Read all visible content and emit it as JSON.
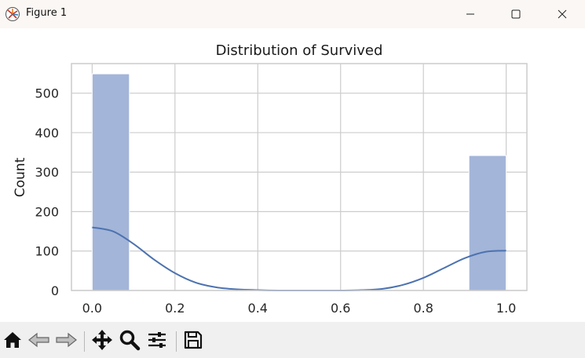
{
  "window": {
    "title": "Figure 1",
    "icons": {
      "app": "matplotlib-figure-icon",
      "minimize": "minimize-icon",
      "maximize": "maximize-icon",
      "close": "close-icon"
    }
  },
  "toolbar": {
    "buttons": [
      {
        "name": "home-button",
        "icon": "home-icon"
      },
      {
        "name": "back-button",
        "icon": "back-arrow-icon"
      },
      {
        "name": "forward-button",
        "icon": "forward-arrow-icon"
      },
      {
        "name": "pan-button",
        "icon": "move-arrows-icon"
      },
      {
        "name": "zoom-button",
        "icon": "magnifier-icon"
      },
      {
        "name": "configure-subplots-button",
        "icon": "sliders-icon"
      },
      {
        "name": "save-button",
        "icon": "floppy-disk-icon"
      }
    ]
  },
  "chart_data": {
    "type": "bar",
    "title": "Distribution of Survived",
    "xlabel": "",
    "ylabel": "Count",
    "xlim": [
      -0.05,
      1.05
    ],
    "ylim": [
      0,
      575
    ],
    "grid": true,
    "xticks": [
      0.0,
      0.2,
      0.4,
      0.6,
      0.8,
      1.0
    ],
    "xtick_labels": [
      "0.0",
      "0.2",
      "0.4",
      "0.6",
      "0.8",
      "1.0"
    ],
    "yticks": [
      0,
      100,
      200,
      300,
      400,
      500
    ],
    "ytick_labels": [
      "0",
      "100",
      "200",
      "300",
      "400",
      "500"
    ],
    "bins": [
      {
        "x0": 0.0,
        "x1": 0.09,
        "count": 549
      },
      {
        "x0": 0.91,
        "x1": 1.0,
        "count": 342
      }
    ],
    "kde": {
      "x": [
        0.0,
        0.05,
        0.1,
        0.15,
        0.2,
        0.25,
        0.3,
        0.35,
        0.4,
        0.45,
        0.5,
        0.55,
        0.6,
        0.65,
        0.7,
        0.75,
        0.8,
        0.85,
        0.9,
        0.95,
        1.0
      ],
      "y": [
        160,
        150,
        118,
        78,
        44,
        20,
        8,
        3,
        1,
        0,
        0,
        0,
        0,
        1,
        4,
        14,
        32,
        57,
        82,
        98,
        101
      ]
    },
    "colors": {
      "bar_fill": "#a3b5d8",
      "line": "#4c72b0",
      "grid": "#cccccc",
      "axis_frame": "#cccccc"
    }
  }
}
